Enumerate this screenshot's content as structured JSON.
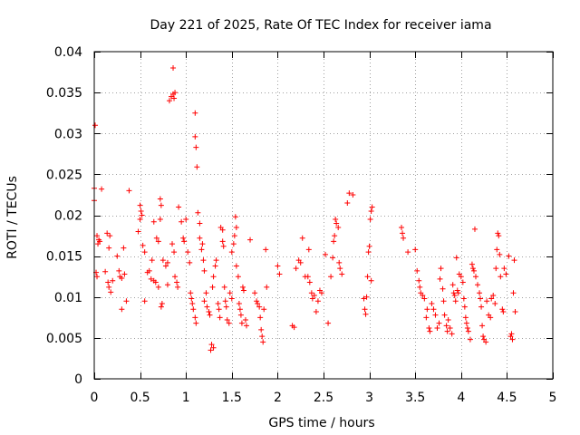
{
  "chart_data": {
    "type": "scatter",
    "title": "Day 221 of 2025, Rate Of TEC Index for receiver iama",
    "xlabel": "GPS time / hours",
    "ylabel": "ROTI / TECUs",
    "xlim": [
      0,
      5
    ],
    "ylim": [
      0,
      0.04
    ],
    "grid": true,
    "xticks": [
      "0",
      "0.5",
      "1",
      "1.5",
      "2",
      "2.5",
      "3",
      "3.5",
      "4",
      "4.5",
      "5"
    ],
    "yticks": [
      "0",
      "0.005",
      "0.01",
      "0.015",
      "0.02",
      "0.025",
      "0.03",
      "0.035",
      "0.04"
    ],
    "marker_color": "#ff0000",
    "series": [
      {
        "name": "ROTI",
        "marker": "+",
        "points": [
          [
            0.01,
            0.031
          ],
          [
            0.0,
            0.0233
          ],
          [
            0.0,
            0.0218
          ],
          [
            0.08,
            0.0232
          ],
          [
            0.03,
            0.0175
          ],
          [
            0.05,
            0.017
          ],
          [
            0.06,
            0.0168
          ],
          [
            0.04,
            0.0165
          ],
          [
            0.02,
            0.013
          ],
          [
            0.03,
            0.0125
          ],
          [
            0.12,
            0.0131
          ],
          [
            0.14,
            0.0178
          ],
          [
            0.16,
            0.016
          ],
          [
            0.17,
            0.0175
          ],
          [
            0.15,
            0.0118
          ],
          [
            0.16,
            0.0112
          ],
          [
            0.18,
            0.0106
          ],
          [
            0.2,
            0.012
          ],
          [
            0.25,
            0.015
          ],
          [
            0.27,
            0.0132
          ],
          [
            0.28,
            0.0125
          ],
          [
            0.3,
            0.0123
          ],
          [
            0.3,
            0.0085
          ],
          [
            0.33,
            0.0128
          ],
          [
            0.35,
            0.0095
          ],
          [
            0.32,
            0.016
          ],
          [
            0.38,
            0.023
          ],
          [
            0.48,
            0.018
          ],
          [
            0.5,
            0.0212
          ],
          [
            0.51,
            0.0205
          ],
          [
            0.52,
            0.02
          ],
          [
            0.5,
            0.0195
          ],
          [
            0.53,
            0.0163
          ],
          [
            0.55,
            0.0155
          ],
          [
            0.55,
            0.0095
          ],
          [
            0.58,
            0.013
          ],
          [
            0.6,
            0.0132
          ],
          [
            0.62,
            0.0122
          ],
          [
            0.65,
            0.012
          ],
          [
            0.67,
            0.0118
          ],
          [
            0.63,
            0.0145
          ],
          [
            0.65,
            0.0192
          ],
          [
            0.68,
            0.0172
          ],
          [
            0.7,
            0.0168
          ],
          [
            0.72,
            0.0195
          ],
          [
            0.72,
            0.022
          ],
          [
            0.73,
            0.0212
          ],
          [
            0.7,
            0.0112
          ],
          [
            0.73,
            0.0088
          ],
          [
            0.74,
            0.0092
          ],
          [
            0.75,
            0.0145
          ],
          [
            0.78,
            0.0138
          ],
          [
            0.8,
            0.0142
          ],
          [
            0.8,
            0.0115
          ],
          [
            0.82,
            0.034
          ],
          [
            0.84,
            0.0345
          ],
          [
            0.86,
            0.0348
          ],
          [
            0.87,
            0.0343
          ],
          [
            0.88,
            0.035
          ],
          [
            0.86,
            0.038
          ],
          [
            0.85,
            0.0165
          ],
          [
            0.87,
            0.0155
          ],
          [
            0.88,
            0.0125
          ],
          [
            0.9,
            0.0118
          ],
          [
            0.91,
            0.0112
          ],
          [
            0.92,
            0.021
          ],
          [
            0.95,
            0.0192
          ],
          [
            0.97,
            0.0172
          ],
          [
            0.98,
            0.0168
          ],
          [
            1.0,
            0.0195
          ],
          [
            1.02,
            0.0155
          ],
          [
            1.04,
            0.0142
          ],
          [
            1.05,
            0.0105
          ],
          [
            1.06,
            0.0098
          ],
          [
            1.07,
            0.0092
          ],
          [
            1.08,
            0.0085
          ],
          [
            1.1,
            0.0325
          ],
          [
            1.1,
            0.0296
          ],
          [
            1.11,
            0.0283
          ],
          [
            1.12,
            0.0259
          ],
          [
            1.13,
            0.0203
          ],
          [
            1.15,
            0.019
          ],
          [
            1.15,
            0.0172
          ],
          [
            1.17,
            0.0158
          ],
          [
            1.18,
            0.0165
          ],
          [
            1.19,
            0.0145
          ],
          [
            1.2,
            0.0132
          ],
          [
            1.2,
            0.0095
          ],
          [
            1.1,
            0.0075
          ],
          [
            1.11,
            0.0068
          ],
          [
            1.22,
            0.0105
          ],
          [
            1.23,
            0.0088
          ],
          [
            1.25,
            0.0082
          ],
          [
            1.26,
            0.0078
          ],
          [
            1.27,
            0.0035
          ],
          [
            1.28,
            0.0042
          ],
          [
            1.3,
            0.0038
          ],
          [
            1.29,
            0.0112
          ],
          [
            1.3,
            0.0125
          ],
          [
            1.32,
            0.0138
          ],
          [
            1.33,
            0.0145
          ],
          [
            1.35,
            0.0092
          ],
          [
            1.36,
            0.0085
          ],
          [
            1.37,
            0.0075
          ],
          [
            1.38,
            0.0185
          ],
          [
            1.4,
            0.0182
          ],
          [
            1.4,
            0.0168
          ],
          [
            1.41,
            0.0162
          ],
          [
            1.42,
            0.0112
          ],
          [
            1.43,
            0.0095
          ],
          [
            1.44,
            0.0088
          ],
          [
            1.45,
            0.0072
          ],
          [
            1.47,
            0.0068
          ],
          [
            1.48,
            0.0105
          ],
          [
            1.5,
            0.0098
          ],
          [
            1.5,
            0.0155
          ],
          [
            1.52,
            0.0165
          ],
          [
            1.53,
            0.0175
          ],
          [
            1.54,
            0.0198
          ],
          [
            1.55,
            0.0185
          ],
          [
            1.55,
            0.0138
          ],
          [
            1.57,
            0.0125
          ],
          [
            1.58,
            0.0092
          ],
          [
            1.59,
            0.0085
          ],
          [
            1.6,
            0.0078
          ],
          [
            1.61,
            0.0068
          ],
          [
            1.62,
            0.0112
          ],
          [
            1.63,
            0.0108
          ],
          [
            1.65,
            0.0072
          ],
          [
            1.66,
            0.0065
          ],
          [
            1.7,
            0.017
          ],
          [
            1.75,
            0.0105
          ],
          [
            1.77,
            0.0095
          ],
          [
            1.78,
            0.0092
          ],
          [
            1.8,
            0.0088
          ],
          [
            1.81,
            0.0075
          ],
          [
            1.82,
            0.006
          ],
          [
            1.83,
            0.0052
          ],
          [
            1.84,
            0.0045
          ],
          [
            1.85,
            0.0085
          ],
          [
            1.87,
            0.0158
          ],
          [
            1.88,
            0.0112
          ],
          [
            2.0,
            0.0138
          ],
          [
            2.02,
            0.0128
          ],
          [
            2.16,
            0.0065
          ],
          [
            2.18,
            0.0063
          ],
          [
            2.2,
            0.0135
          ],
          [
            2.23,
            0.0145
          ],
          [
            2.25,
            0.0142
          ],
          [
            2.27,
            0.0172
          ],
          [
            2.3,
            0.0125
          ],
          [
            2.33,
            0.0125
          ],
          [
            2.34,
            0.0158
          ],
          [
            2.35,
            0.0118
          ],
          [
            2.37,
            0.0105
          ],
          [
            2.38,
            0.0098
          ],
          [
            2.4,
            0.0102
          ],
          [
            2.42,
            0.0082
          ],
          [
            2.44,
            0.0095
          ],
          [
            2.46,
            0.0108
          ],
          [
            2.48,
            0.0105
          ],
          [
            2.52,
            0.0152
          ],
          [
            2.55,
            0.0068
          ],
          [
            2.58,
            0.0125
          ],
          [
            2.6,
            0.0148
          ],
          [
            2.61,
            0.0168
          ],
          [
            2.62,
            0.0175
          ],
          [
            2.63,
            0.0195
          ],
          [
            2.64,
            0.019
          ],
          [
            2.66,
            0.0185
          ],
          [
            2.67,
            0.0142
          ],
          [
            2.68,
            0.0135
          ],
          [
            2.7,
            0.0128
          ],
          [
            2.76,
            0.0215
          ],
          [
            2.78,
            0.0227
          ],
          [
            2.82,
            0.0225
          ],
          [
            2.94,
            0.0098
          ],
          [
            2.95,
            0.0085
          ],
          [
            2.96,
            0.0079
          ],
          [
            2.97,
            0.01
          ],
          [
            2.98,
            0.0125
          ],
          [
            2.99,
            0.0155
          ],
          [
            3.0,
            0.0162
          ],
          [
            3.01,
            0.0195
          ],
          [
            3.02,
            0.0205
          ],
          [
            3.03,
            0.021
          ],
          [
            3.02,
            0.012
          ],
          [
            3.35,
            0.0185
          ],
          [
            3.36,
            0.0178
          ],
          [
            3.37,
            0.0172
          ],
          [
            3.42,
            0.0155
          ],
          [
            3.5,
            0.0158
          ],
          [
            3.52,
            0.0132
          ],
          [
            3.54,
            0.012
          ],
          [
            3.55,
            0.0112
          ],
          [
            3.56,
            0.0105
          ],
          [
            3.58,
            0.0102
          ],
          [
            3.6,
            0.0098
          ],
          [
            3.62,
            0.0075
          ],
          [
            3.63,
            0.0085
          ],
          [
            3.65,
            0.0062
          ],
          [
            3.66,
            0.0058
          ],
          [
            3.68,
            0.0092
          ],
          [
            3.7,
            0.0085
          ],
          [
            3.72,
            0.0078
          ],
          [
            3.74,
            0.0062
          ],
          [
            3.76,
            0.0068
          ],
          [
            3.77,
            0.0122
          ],
          [
            3.78,
            0.0135
          ],
          [
            3.8,
            0.011
          ],
          [
            3.81,
            0.0095
          ],
          [
            3.82,
            0.0078
          ],
          [
            3.84,
            0.0065
          ],
          [
            3.85,
            0.0058
          ],
          [
            3.86,
            0.0072
          ],
          [
            3.88,
            0.0062
          ],
          [
            3.9,
            0.0055
          ],
          [
            3.91,
            0.0115
          ],
          [
            3.92,
            0.0105
          ],
          [
            3.93,
            0.0102
          ],
          [
            3.94,
            0.0095
          ],
          [
            3.95,
            0.0148
          ],
          [
            3.96,
            0.0108
          ],
          [
            3.97,
            0.0105
          ],
          [
            3.98,
            0.0128
          ],
          [
            4.0,
            0.0125
          ],
          [
            4.02,
            0.0118
          ],
          [
            4.03,
            0.0098
          ],
          [
            4.04,
            0.0088
          ],
          [
            4.05,
            0.0075
          ],
          [
            4.06,
            0.0068
          ],
          [
            4.07,
            0.0062
          ],
          [
            4.08,
            0.0058
          ],
          [
            4.1,
            0.0048
          ],
          [
            4.12,
            0.014
          ],
          [
            4.13,
            0.0135
          ],
          [
            4.14,
            0.0132
          ],
          [
            4.15,
            0.0183
          ],
          [
            4.16,
            0.0125
          ],
          [
            4.18,
            0.0115
          ],
          [
            4.2,
            0.0105
          ],
          [
            4.21,
            0.0098
          ],
          [
            4.22,
            0.0088
          ],
          [
            4.23,
            0.0065
          ],
          [
            4.24,
            0.0052
          ],
          [
            4.25,
            0.0048
          ],
          [
            4.27,
            0.0045
          ],
          [
            4.28,
            0.0095
          ],
          [
            4.3,
            0.0078
          ],
          [
            4.32,
            0.0075
          ],
          [
            4.33,
            0.0098
          ],
          [
            4.35,
            0.0102
          ],
          [
            4.37,
            0.0092
          ],
          [
            4.38,
            0.0135
          ],
          [
            4.39,
            0.0158
          ],
          [
            4.4,
            0.0178
          ],
          [
            4.41,
            0.0175
          ],
          [
            4.42,
            0.0152
          ],
          [
            4.43,
            0.0125
          ],
          [
            4.45,
            0.0085
          ],
          [
            4.46,
            0.0082
          ],
          [
            4.47,
            0.0135
          ],
          [
            4.49,
            0.0128
          ],
          [
            4.52,
            0.015
          ],
          [
            4.54,
            0.0052
          ],
          [
            4.55,
            0.0055
          ],
          [
            4.56,
            0.0048
          ],
          [
            4.57,
            0.0105
          ],
          [
            4.58,
            0.0145
          ],
          [
            4.59,
            0.0082
          ]
        ]
      }
    ]
  }
}
